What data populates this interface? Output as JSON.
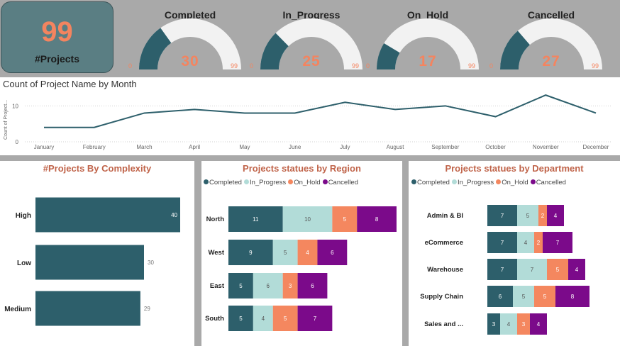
{
  "kpi": {
    "value": "99",
    "label": "#Projects"
  },
  "gauges": [
    {
      "title": "Completed",
      "value": "30",
      "min": "0",
      "max": "99",
      "fraction": 0.303
    },
    {
      "title": "In_Progress",
      "value": "25",
      "min": "0",
      "max": "99",
      "fraction": 0.253
    },
    {
      "title": "On_Hold",
      "value": "17",
      "min": "0",
      "max": "99",
      "fraction": 0.172
    },
    {
      "title": "Cancelled",
      "value": "27",
      "min": "0",
      "max": "99",
      "fraction": 0.273
    }
  ],
  "line_chart": {
    "title": "Count of Project Name by Month",
    "ylabel": "Count of Project...",
    "yticks": [
      "0",
      "10"
    ]
  },
  "complexity_chart": {
    "title": "#Projects By Complexity"
  },
  "region_chart": {
    "title": "Projects statues by Region"
  },
  "department_chart": {
    "title": "Projects statues by Department"
  },
  "legend": [
    {
      "label": "Completed",
      "color": "#2d5f6b"
    },
    {
      "label": "In_Progress",
      "color": "#b2dcd8"
    },
    {
      "label": "On_Hold",
      "color": "#f4875f"
    },
    {
      "label": "Cancelled",
      "color": "#7b0a8a"
    }
  ],
  "chart_data": [
    {
      "type": "line",
      "title": "Count of Project Name by Month",
      "x": [
        "January",
        "February",
        "March",
        "April",
        "May",
        "June",
        "July",
        "August",
        "September",
        "October",
        "November",
        "December"
      ],
      "values": [
        4,
        4,
        8,
        9,
        8,
        8,
        11,
        9,
        10,
        7,
        13,
        8
      ],
      "ylabel": "Count of Project...",
      "ylim": [
        0,
        15
      ],
      "grid": true
    },
    {
      "type": "bar",
      "orientation": "horizontal",
      "title": "#Projects By Complexity",
      "categories": [
        "High",
        "Low",
        "Medium"
      ],
      "values": [
        40,
        30,
        29
      ],
      "color": "#2d5f6b"
    },
    {
      "type": "bar",
      "orientation": "horizontal",
      "stacked": true,
      "title": "Projects statues by Region",
      "categories": [
        "North",
        "West",
        "East",
        "South"
      ],
      "series": [
        {
          "name": "Completed",
          "values": [
            11,
            9,
            5,
            5
          ]
        },
        {
          "name": "In_Progress",
          "values": [
            10,
            5,
            6,
            4
          ]
        },
        {
          "name": "On_Hold",
          "values": [
            5,
            4,
            3,
            5
          ]
        },
        {
          "name": "Cancelled",
          "values": [
            8,
            6,
            6,
            7
          ]
        }
      ],
      "legend": "top-left"
    },
    {
      "type": "bar",
      "orientation": "horizontal",
      "stacked": true,
      "title": "Projects statues by Department",
      "categories": [
        "Admin & BI",
        "eCommerce",
        "Warehouse",
        "Supply Chain",
        "Sales and ..."
      ],
      "series": [
        {
          "name": "Completed",
          "values": [
            7,
            7,
            7,
            6,
            3
          ]
        },
        {
          "name": "In_Progress",
          "values": [
            5,
            4,
            7,
            5,
            4
          ]
        },
        {
          "name": "On_Hold",
          "values": [
            2,
            2,
            5,
            5,
            3
          ]
        },
        {
          "name": "Cancelled",
          "values": [
            4,
            7,
            4,
            8,
            4
          ]
        }
      ],
      "legend": "top-left"
    }
  ]
}
